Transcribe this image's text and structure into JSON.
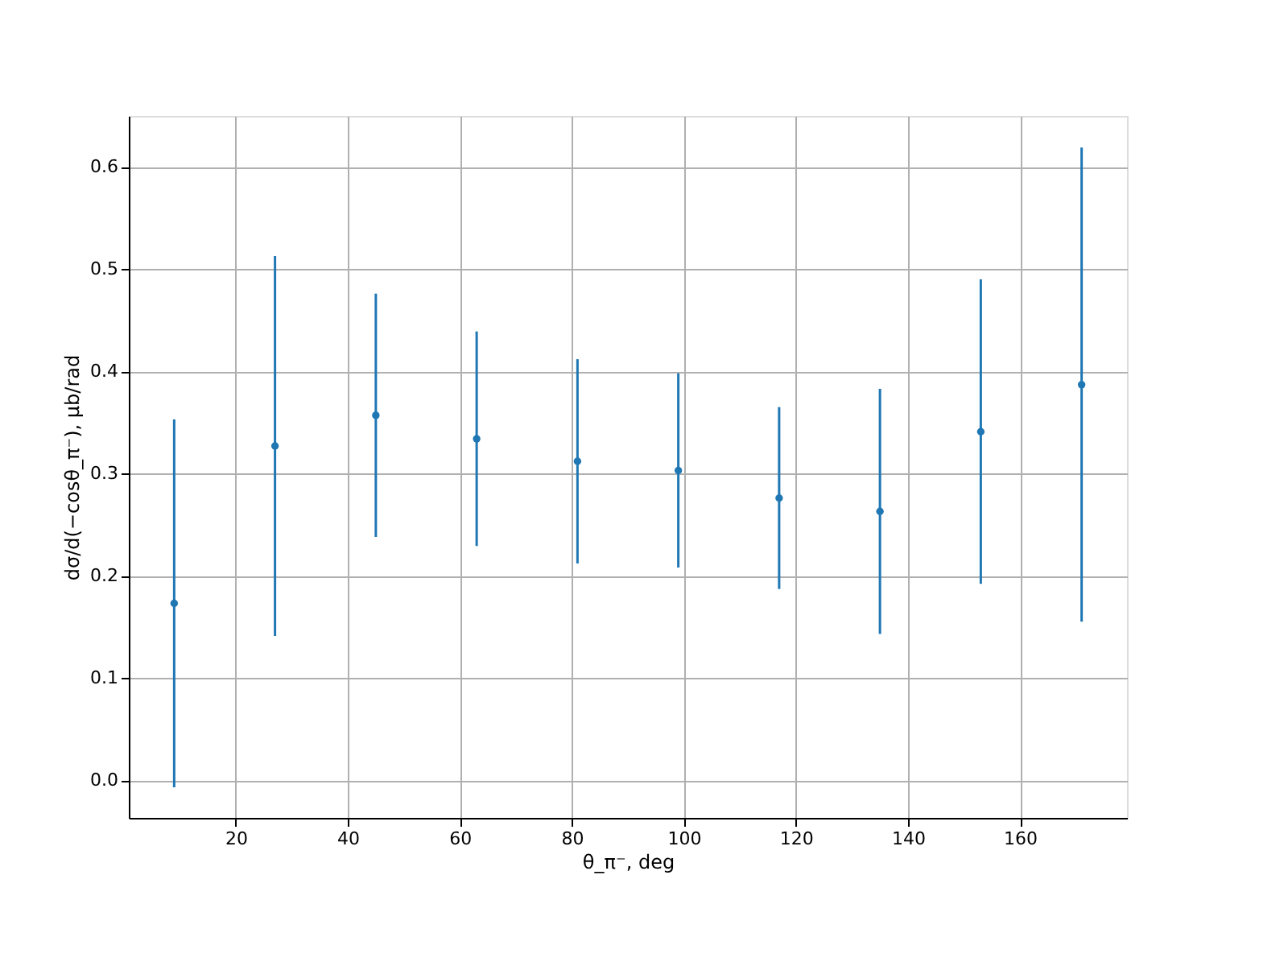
{
  "chart_data": {
    "type": "scatter",
    "xlabel": "θ_π⁻, deg",
    "ylabel": "dσ/d(−cosθ_π⁻), μb/rad",
    "x": [
      9,
      27,
      45,
      63,
      81,
      99,
      117,
      135,
      153,
      171
    ],
    "series": [
      {
        "color": "#1f77b4",
        "values": [
          0.173,
          0.327,
          0.357,
          0.334,
          0.312,
          0.303,
          0.276,
          0.263,
          0.341,
          0.387
        ],
        "errors": [
          0.18,
          0.186,
          0.119,
          0.105,
          0.1,
          0.095,
          0.089,
          0.12,
          0.149,
          0.232
        ]
      }
    ],
    "xlim": [
      0.9,
      179.1
    ],
    "ylim": [
      -0.037,
      0.65
    ],
    "xticks": [
      20,
      40,
      60,
      80,
      100,
      120,
      140,
      160
    ],
    "yticks": [
      {
        "value": 0,
        "label": "0.0"
      },
      0.1,
      0.2,
      0.3,
      0.4,
      0.5,
      0.6
    ],
    "grid": true,
    "marker": "circle"
  }
}
